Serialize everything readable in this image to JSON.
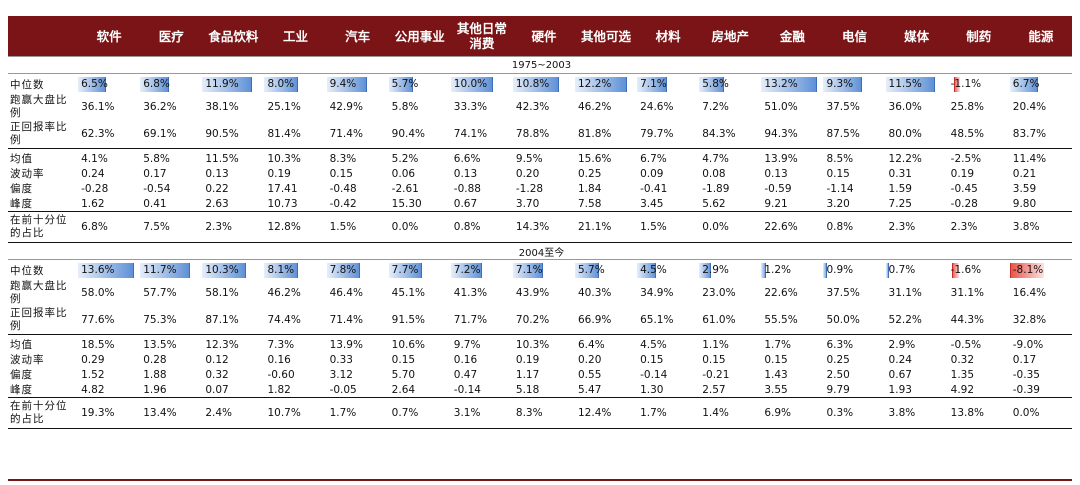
{
  "columns": [
    "软件",
    "医疗",
    "食品饮料",
    "工业",
    "汽车",
    "公用事业",
    "其他日常消费",
    "硬件",
    "其他可选",
    "材料",
    "房地产",
    "金融",
    "电信",
    "媒体",
    "制药",
    "能源"
  ],
  "colors": {
    "header_bg": "#7b1416",
    "bar_pos": "#5c8fd6",
    "bar_neg": "#e84f48"
  },
  "bar_max_abs": 13.2,
  "sections": [
    {
      "period": "1975~2003",
      "median_label": "中位数",
      "median_display": [
        "6.5%",
        "6.8%",
        "11.9%",
        "8.0%",
        "9.4%",
        "5.7%",
        "10.0%",
        "10.8%",
        "12.2%",
        "7.1%",
        "5.8%",
        "13.2%",
        "9.3%",
        "11.5%",
        "-1.1%",
        "6.7%"
      ],
      "median_value": [
        6.5,
        6.8,
        11.9,
        8.0,
        9.4,
        5.7,
        10.0,
        10.8,
        12.2,
        7.1,
        5.8,
        13.2,
        9.3,
        11.5,
        -1.1,
        6.7
      ],
      "rows2": [
        {
          "label": "跑赢大盘比例",
          "values": [
            "36.1%",
            "36.2%",
            "38.1%",
            "25.1%",
            "42.9%",
            "5.8%",
            "33.3%",
            "42.3%",
            "46.2%",
            "24.6%",
            "7.2%",
            "51.0%",
            "37.5%",
            "36.0%",
            "25.8%",
            "20.4%"
          ]
        },
        {
          "label": "正回报率比例",
          "values": [
            "62.3%",
            "69.1%",
            "90.5%",
            "81.4%",
            "71.4%",
            "90.4%",
            "74.1%",
            "78.8%",
            "81.8%",
            "79.7%",
            "84.3%",
            "94.3%",
            "87.5%",
            "80.0%",
            "48.5%",
            "83.7%"
          ]
        }
      ],
      "stats": [
        {
          "label": "均值",
          "values": [
            "4.1%",
            "5.8%",
            "11.5%",
            "10.3%",
            "8.3%",
            "5.2%",
            "6.6%",
            "9.5%",
            "15.6%",
            "6.7%",
            "4.7%",
            "13.9%",
            "8.5%",
            "12.2%",
            "-2.5%",
            "11.4%"
          ]
        },
        {
          "label": "波动率",
          "values": [
            "0.24",
            "0.17",
            "0.13",
            "0.19",
            "0.15",
            "0.06",
            "0.13",
            "0.20",
            "0.25",
            "0.09",
            "0.08",
            "0.13",
            "0.15",
            "0.31",
            "0.19",
            "0.21"
          ]
        },
        {
          "label": "偏度",
          "values": [
            "-0.28",
            "-0.54",
            "0.22",
            "17.41",
            "-0.48",
            "-2.61",
            "-0.88",
            "-1.28",
            "1.84",
            "-0.41",
            "-1.89",
            "-0.59",
            "-1.14",
            "1.59",
            "-0.45",
            "3.59"
          ]
        },
        {
          "label": "峰度",
          "values": [
            "1.62",
            "0.41",
            "2.63",
            "10.73",
            "-0.42",
            "15.30",
            "0.67",
            "3.70",
            "7.58",
            "3.45",
            "5.62",
            "9.21",
            "3.20",
            "7.25",
            "-0.28",
            "9.80"
          ]
        }
      ],
      "decile": {
        "label": "在前十分位的占比",
        "values": [
          "6.8%",
          "7.5%",
          "2.3%",
          "12.8%",
          "1.5%",
          "0.0%",
          "0.8%",
          "14.3%",
          "21.1%",
          "1.5%",
          "0.0%",
          "22.6%",
          "0.8%",
          "2.3%",
          "2.3%",
          "3.8%"
        ]
      }
    },
    {
      "period": "2004至今",
      "median_label": "中位数",
      "median_display": [
        "13.6%",
        "11.7%",
        "10.3%",
        "8.1%",
        "7.8%",
        "7.7%",
        "7.2%",
        "7.1%",
        "5.7%",
        "4.5%",
        "2.9%",
        "1.2%",
        "0.9%",
        "0.7%",
        "-1.6%",
        "-8.1%"
      ],
      "median_value": [
        13.6,
        11.7,
        10.3,
        8.1,
        7.8,
        7.7,
        7.2,
        7.1,
        5.7,
        4.5,
        2.9,
        1.2,
        0.9,
        0.7,
        -1.6,
        -8.1
      ],
      "rows2": [
        {
          "label": "跑赢大盘比例",
          "values": [
            "58.0%",
            "57.7%",
            "58.1%",
            "46.2%",
            "46.4%",
            "45.1%",
            "41.3%",
            "43.9%",
            "40.3%",
            "34.9%",
            "23.0%",
            "22.6%",
            "37.5%",
            "31.1%",
            "31.1%",
            "16.4%"
          ]
        },
        {
          "label": "正回报率比例",
          "values": [
            "77.6%",
            "75.3%",
            "87.1%",
            "74.4%",
            "71.4%",
            "91.5%",
            "71.7%",
            "70.2%",
            "66.9%",
            "65.1%",
            "61.0%",
            "55.5%",
            "50.0%",
            "52.2%",
            "44.3%",
            "32.8%"
          ]
        }
      ],
      "stats": [
        {
          "label": "均值",
          "values": [
            "18.5%",
            "13.5%",
            "12.3%",
            "7.3%",
            "13.9%",
            "10.6%",
            "9.7%",
            "10.3%",
            "6.4%",
            "4.5%",
            "1.1%",
            "1.7%",
            "6.3%",
            "2.9%",
            "-0.5%",
            "-9.0%"
          ]
        },
        {
          "label": "波动率",
          "values": [
            "0.29",
            "0.28",
            "0.12",
            "0.16",
            "0.33",
            "0.15",
            "0.16",
            "0.19",
            "0.20",
            "0.15",
            "0.15",
            "0.15",
            "0.25",
            "0.24",
            "0.32",
            "0.17"
          ]
        },
        {
          "label": "偏度",
          "values": [
            "1.52",
            "1.88",
            "0.32",
            "-0.60",
            "3.12",
            "5.70",
            "0.47",
            "1.17",
            "0.55",
            "-0.14",
            "-0.21",
            "1.43",
            "2.50",
            "0.67",
            "1.35",
            "-0.35"
          ]
        },
        {
          "label": "峰度",
          "values": [
            "4.82",
            "1.96",
            "0.07",
            "1.82",
            "-0.05",
            "2.64",
            "-0.14",
            "5.18",
            "5.47",
            "1.30",
            "2.57",
            "3.55",
            "9.79",
            "1.93",
            "4.92",
            "-0.39"
          ]
        }
      ],
      "decile": {
        "label": "在前十分位的占比",
        "values": [
          "19.3%",
          "13.4%",
          "2.4%",
          "10.7%",
          "1.7%",
          "0.7%",
          "3.1%",
          "8.3%",
          "12.4%",
          "1.7%",
          "1.4%",
          "6.9%",
          "0.3%",
          "3.8%",
          "13.8%",
          "0.0%"
        ]
      }
    }
  ]
}
